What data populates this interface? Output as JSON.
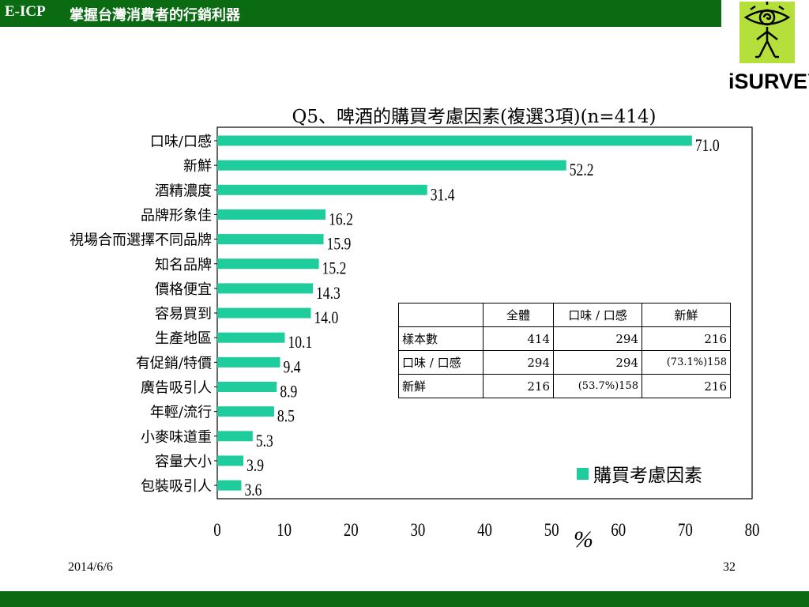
{
  "header": {
    "brand": "E-ICP",
    "tagline": "掌握台灣消費者的行銷利器"
  },
  "logo": {
    "text": "iSURVEY",
    "icon": "eye-spiral-figure-icon",
    "background": "#b5e03c"
  },
  "colors": {
    "bar": "#1fcc9c",
    "header_green": "#0b6b12"
  },
  "chart_data": {
    "type": "bar",
    "orientation": "horizontal",
    "title": "Q5、啤酒的購買考慮因素(複選3項)(n=414)",
    "categories": [
      "口味/口感",
      "新鮮",
      "酒精濃度",
      "品牌形象佳",
      "視場合而選擇不同品牌",
      "知名品牌",
      "價格便宜",
      "容易買到",
      "生產地區",
      "有促銷/特價",
      "廣告吸引人",
      "年輕/流行",
      "小麥味道重",
      "容量大小",
      "包裝吸引人"
    ],
    "values": [
      71.0,
      52.2,
      31.4,
      16.2,
      15.9,
      15.2,
      14.3,
      14.0,
      10.1,
      9.4,
      8.9,
      8.5,
      5.3,
      3.9,
      3.6
    ],
    "value_labels": [
      "71.0",
      "52.2",
      "31.4",
      "16.2",
      "15.9",
      "15.2",
      "14.3",
      "14.0",
      "10.1",
      "9.4",
      "8.9",
      "8.5",
      "5.3",
      "3.9",
      "3.6"
    ],
    "series": [
      {
        "name": "購買考慮因素",
        "values": [
          71.0,
          52.2,
          31.4,
          16.2,
          15.9,
          15.2,
          14.3,
          14.0,
          10.1,
          9.4,
          8.9,
          8.5,
          5.3,
          3.9,
          3.6
        ]
      }
    ],
    "xticks": [
      "0",
      "10",
      "20",
      "30",
      "40",
      "50",
      "60",
      "70",
      "80"
    ],
    "xlim": [
      0,
      80
    ],
    "xlabel": "%",
    "ylabel": "",
    "grid": false,
    "legend": "bottom-right"
  },
  "table": {
    "headers": [
      "",
      "全體",
      "口味 / 口感",
      "新鮮"
    ],
    "rows": [
      {
        "label": "樣本數",
        "cells": [
          "414",
          "294",
          "216"
        ]
      },
      {
        "label": "口味 / 口感",
        "cells": [
          "294",
          "294",
          "(73.1%)158"
        ]
      },
      {
        "label": "新鮮",
        "cells": [
          "216",
          "(53.7%)158",
          "216"
        ]
      }
    ]
  },
  "footer": {
    "date": "2014/6/6",
    "page": "32"
  }
}
